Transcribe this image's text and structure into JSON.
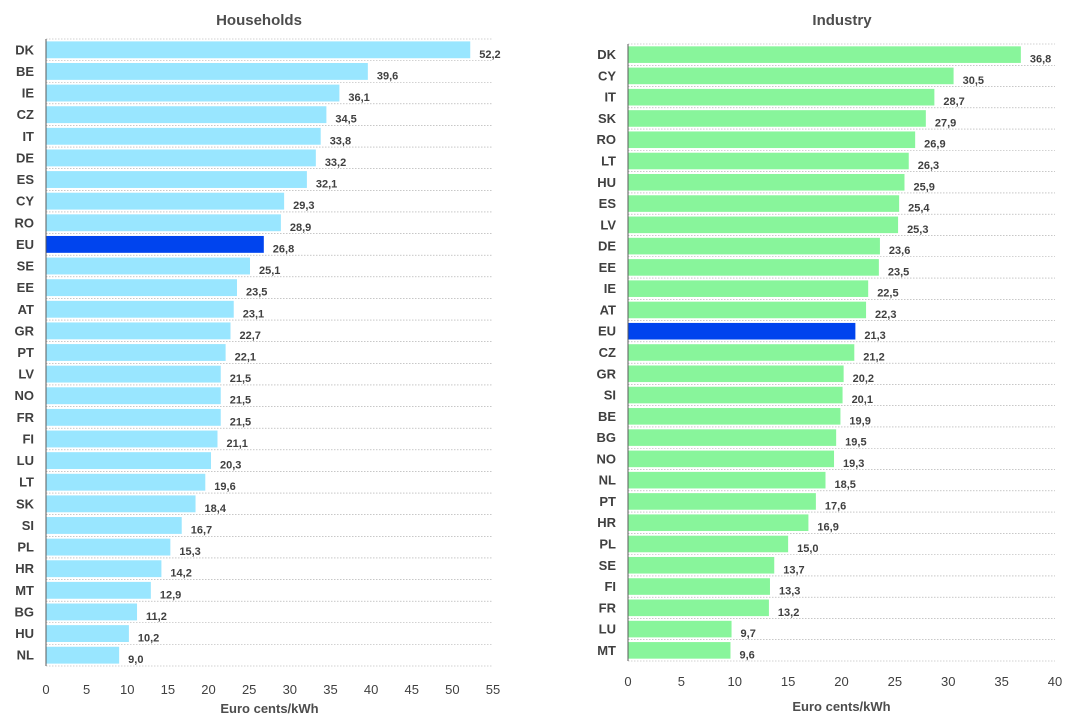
{
  "chart_data": [
    {
      "type": "bar",
      "orientation": "horizontal",
      "title": "Households",
      "xlabel": "Euro cents/kWh",
      "xlim": [
        0,
        55
      ],
      "xticks": [
        0,
        5,
        10,
        15,
        20,
        25,
        30,
        35,
        40,
        45,
        50,
        55
      ],
      "grid": "horizontal dotted",
      "colors": {
        "bar": "#99e6ff",
        "highlight": "#0044ee"
      },
      "highlight": "EU",
      "categories": [
        "DK",
        "BE",
        "IE",
        "CZ",
        "IT",
        "DE",
        "ES",
        "CY",
        "RO",
        "EU",
        "SE",
        "EE",
        "AT",
        "GR",
        "PT",
        "LV",
        "NO",
        "FR",
        "FI",
        "LU",
        "LT",
        "SK",
        "SI",
        "PL",
        "HR",
        "MT",
        "BG",
        "HU",
        "NL"
      ],
      "values": [
        52.2,
        39.6,
        36.1,
        34.5,
        33.8,
        33.2,
        32.1,
        29.3,
        28.9,
        26.8,
        25.1,
        23.5,
        23.1,
        22.7,
        22.1,
        21.5,
        21.5,
        21.5,
        21.1,
        20.3,
        19.6,
        18.4,
        16.7,
        15.3,
        14.2,
        12.9,
        11.2,
        10.2,
        9.0
      ],
      "value_labels": [
        "52,2",
        "39,6",
        "36,1",
        "34,5",
        "33,8",
        "33,2",
        "32,1",
        "29,3",
        "28,9",
        "26,8",
        "25,1",
        "23,5",
        "23,1",
        "22,7",
        "22,1",
        "21,5",
        "21,5",
        "21,5",
        "21,1",
        "20,3",
        "19,6",
        "18,4",
        "16,7",
        "15,3",
        "14,2",
        "12,9",
        "11,2",
        "10,2",
        "9,0"
      ]
    },
    {
      "type": "bar",
      "orientation": "horizontal",
      "title": "Industry",
      "xlabel": "Euro cents/kWh",
      "xlim": [
        0,
        40
      ],
      "xticks": [
        0,
        5,
        10,
        15,
        20,
        25,
        30,
        35,
        40
      ],
      "grid": "horizontal dotted",
      "colors": {
        "bar": "#88f59b",
        "highlight": "#0044ee"
      },
      "highlight": "EU",
      "categories": [
        "DK",
        "CY",
        "IT",
        "SK",
        "RO",
        "LT",
        "HU",
        "ES",
        "LV",
        "DE",
        "EE",
        "IE",
        "AT",
        "EU",
        "CZ",
        "GR",
        "SI",
        "BE",
        "BG",
        "NO",
        "NL",
        "PT",
        "HR",
        "PL",
        "SE",
        "FI",
        "FR",
        "LU",
        "MT"
      ],
      "values": [
        36.8,
        30.5,
        28.7,
        27.9,
        26.9,
        26.3,
        25.9,
        25.4,
        25.3,
        23.6,
        23.5,
        22.5,
        22.3,
        21.3,
        21.2,
        20.2,
        20.1,
        19.9,
        19.5,
        19.3,
        18.5,
        17.6,
        16.9,
        15.0,
        13.7,
        13.3,
        13.2,
        9.7,
        9.6
      ],
      "value_labels": [
        "36,8",
        "30,5",
        "28,7",
        "27,9",
        "26,9",
        "26,3",
        "25,9",
        "25,4",
        "25,3",
        "23,6",
        "23,5",
        "22,5",
        "22,3",
        "21,3",
        "21,2",
        "20,2",
        "20,1",
        "19,9",
        "19,5",
        "19,3",
        "18,5",
        "17,6",
        "16,9",
        "15,0",
        "13,7",
        "13,3",
        "13,2",
        "9,7",
        "9,6"
      ]
    }
  ]
}
